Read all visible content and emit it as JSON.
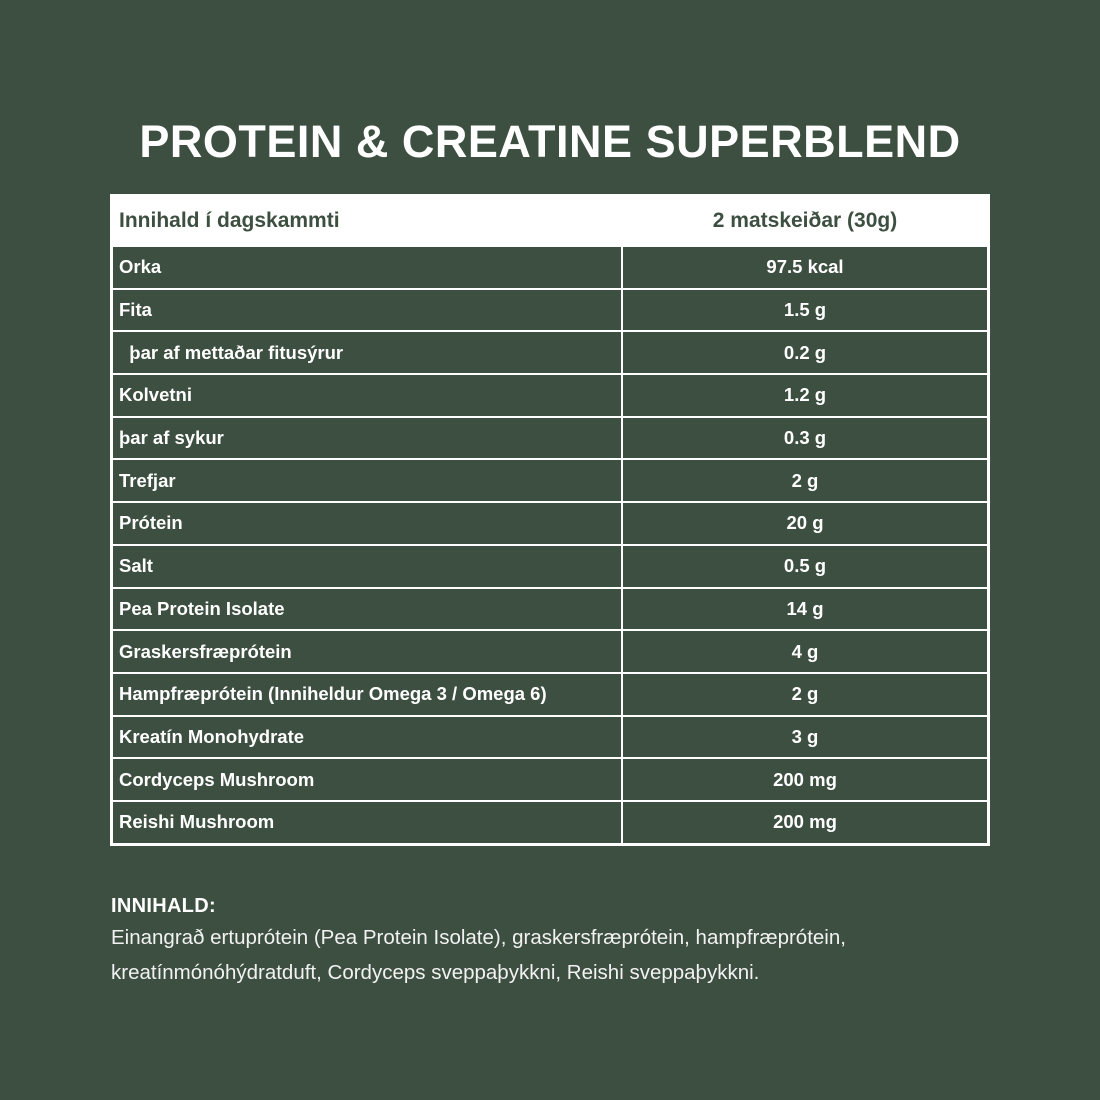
{
  "title": "PROTEIN & CREATINE SUPERBLEND",
  "colors": {
    "background": "#3d4f40",
    "text": "#ffffff",
    "header_fill": "#ffffff",
    "header_text": "#3d4f40"
  },
  "table": {
    "headers": [
      "Innihald í dagskammti",
      "2 matskeiðar (30g)"
    ],
    "rows": [
      {
        "label": "Orka",
        "value": "97.5 kcal"
      },
      {
        "label": "Fita",
        "value": "1.5 g"
      },
      {
        "label": "  þar af mettaðar fitusýrur",
        "value": "0.2 g"
      },
      {
        "label": "Kolvetni",
        "value": "1.2 g"
      },
      {
        "label": "þar af sykur",
        "value": "0.3 g"
      },
      {
        "label": "Trefjar",
        "value": "2 g"
      },
      {
        "label": "Prótein",
        "value": "20 g"
      },
      {
        "label": "Salt",
        "value": "0.5 g"
      },
      {
        "label": "Pea Protein Isolate",
        "value": "14 g"
      },
      {
        "label": "Graskersfræprótein",
        "value": "4 g"
      },
      {
        "label": "Hampfræprótein (Inniheldur Omega 3 / Omega 6)",
        "value": "2 g"
      },
      {
        "label": "Kreatín Monohydrate",
        "value": "3 g"
      },
      {
        "label": "Cordyceps Mushroom",
        "value": "200 mg"
      },
      {
        "label": "Reishi Mushroom",
        "value": "200 mg"
      }
    ]
  },
  "ingredients": {
    "heading": "INNIHALD:",
    "line1": "Einangrað ertuprótein (Pea Protein Isolate), graskersfræprótein, hampfræprótein,",
    "line2": "kreatínmónóhýdratduft, Cordyceps sveppaþykkni, Reishi sveppaþykkni."
  }
}
